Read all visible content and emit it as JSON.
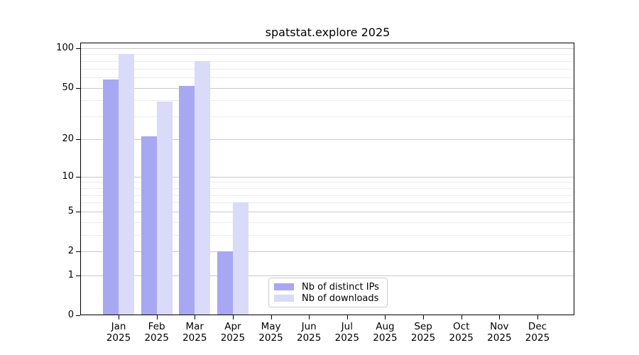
{
  "chart_data": {
    "type": "bar",
    "title": "spatstat.explore 2025",
    "xlabel": "",
    "ylabel": "",
    "categories": [
      "Jan",
      "Feb",
      "Mar",
      "Apr",
      "May",
      "Jun",
      "Jul",
      "Aug",
      "Sep",
      "Oct",
      "Nov",
      "Dec"
    ],
    "year_label": "2025",
    "series": [
      {
        "name": "Nb of distinct IPs",
        "color": "#a7a7f2",
        "values": [
          58,
          21,
          52,
          2,
          0,
          0,
          0,
          0,
          0,
          0,
          0,
          0
        ]
      },
      {
        "name": "Nb of downloads",
        "color": "#dadaf9",
        "values": [
          90,
          39,
          80,
          6,
          0,
          0,
          0,
          0,
          0,
          0,
          0,
          0
        ]
      }
    ],
    "y_scale": "log1p",
    "y_ticks": [
      0,
      1,
      2,
      5,
      10,
      20,
      50,
      100
    ],
    "y_minor_gridlines": [
      3,
      4,
      6,
      7,
      8,
      9,
      30,
      40,
      60,
      70,
      80,
      90
    ],
    "ylim": [
      0,
      110
    ],
    "grid": true,
    "legend_position": "lower center",
    "colors": {
      "major_grid": "#c9c9c9",
      "minor_grid": "#ececec",
      "axis": "#000000",
      "background": "#ffffff"
    }
  }
}
